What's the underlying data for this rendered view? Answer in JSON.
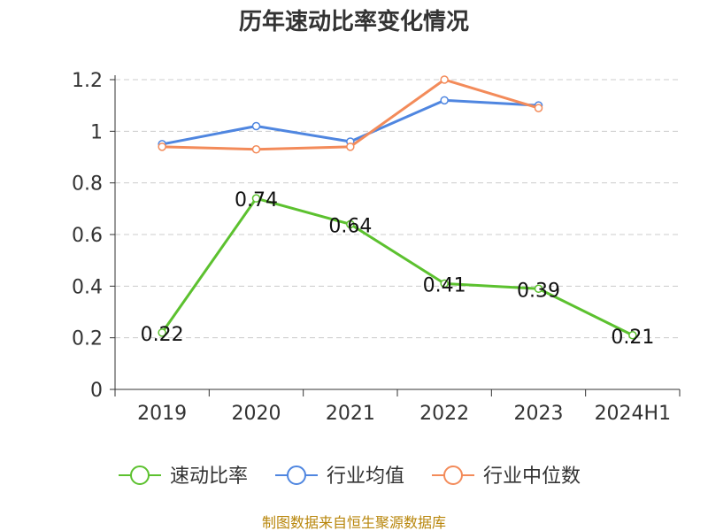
{
  "chart_data": {
    "type": "line",
    "title": "历年速动比率变化情况",
    "categories": [
      "2019",
      "2020",
      "2021",
      "2022",
      "2023",
      "2024H1"
    ],
    "series": [
      {
        "name": "速动比率",
        "color": "#5cc12f",
        "values": [
          0.22,
          0.74,
          0.64,
          0.41,
          0.39,
          0.21
        ],
        "labels": [
          "0.22",
          "0.74",
          "0.64",
          "0.41",
          "0.39",
          "0.21"
        ]
      },
      {
        "name": "行业均值",
        "color": "#4f86e0",
        "values": [
          0.95,
          1.02,
          0.96,
          1.12,
          1.1,
          null
        ]
      },
      {
        "name": "行业中位数",
        "color": "#f38b5a",
        "values": [
          0.94,
          0.93,
          0.94,
          1.2,
          1.09,
          null
        ]
      }
    ],
    "yticks": [
      "0",
      "0.2",
      "0.4",
      "0.6",
      "0.8",
      "1",
      "1.2"
    ],
    "ylim": [
      0,
      1.2
    ],
    "grid": true,
    "legend_position": "bottom"
  },
  "source": "制图数据来自恒生聚源数据库"
}
